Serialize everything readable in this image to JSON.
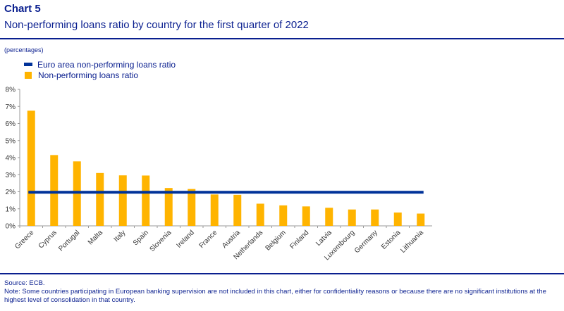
{
  "header": {
    "title": "Chart 5",
    "subtitle": "Non-performing loans ratio by country for the first quarter of 2022"
  },
  "units_label": "(percentages)",
  "legend": [
    {
      "label": "Euro area non-performing loans ratio",
      "color": "#003299",
      "kind": "line"
    },
    {
      "label": "Non-performing loans ratio",
      "color": "#FFB400",
      "kind": "bar"
    }
  ],
  "chart_data": {
    "type": "bar",
    "categories": [
      "Greece",
      "Cyprus",
      "Portugal",
      "Malta",
      "Italy",
      "Spain",
      "Slovenia",
      "Ireland",
      "France",
      "Austria",
      "Netherlands",
      "Belgium",
      "Finland",
      "Latvia",
      "Luxembourg",
      "Germany",
      "Estonia",
      "Lithuania"
    ],
    "series": [
      {
        "name": "Non-performing loans ratio",
        "type": "bar",
        "color": "#FFB400",
        "values": [
          6.75,
          4.15,
          3.78,
          3.1,
          2.96,
          2.95,
          2.22,
          2.16,
          1.84,
          1.82,
          1.3,
          1.2,
          1.14,
          1.06,
          0.96,
          0.96,
          0.78,
          0.72
        ]
      },
      {
        "name": "Euro area non-performing loans ratio",
        "type": "line",
        "color": "#003299",
        "value": 1.97
      }
    ],
    "ylim": [
      0,
      8
    ],
    "yticks": [
      "0%",
      "1%",
      "2%",
      "3%",
      "4%",
      "5%",
      "6%",
      "7%",
      "8%"
    ],
    "grid": false
  },
  "footer": {
    "source": "Source: ECB.",
    "note": "Note: Some countries participating in European banking supervision are not included in this chart, either for confidentiality reasons or because there are no significant institutions at the highest level of consolidation in that country."
  }
}
